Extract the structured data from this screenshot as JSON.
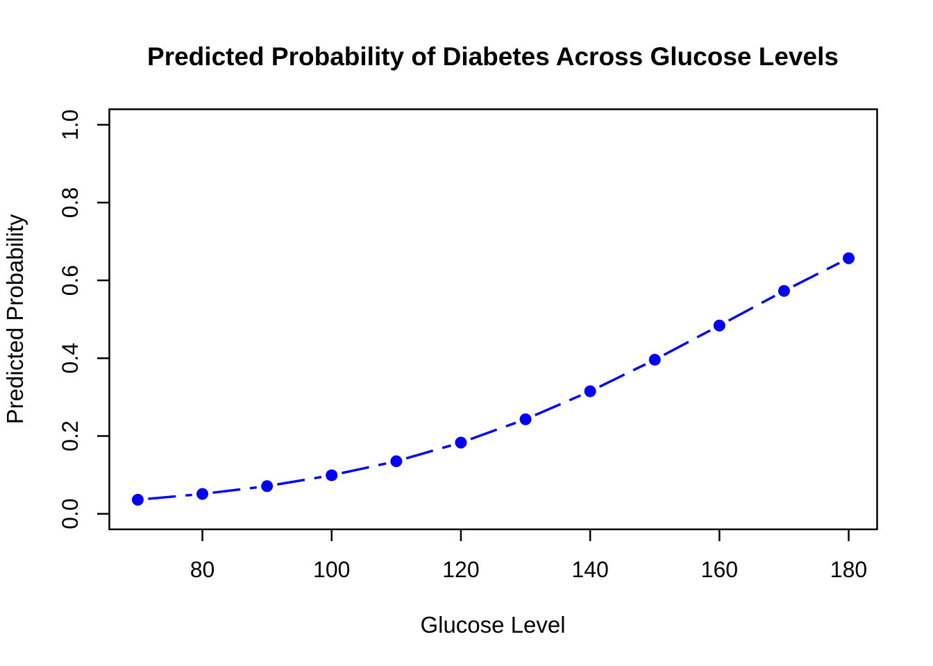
{
  "chart_data": {
    "type": "line",
    "title": "Predicted Probability of Diabetes Across Glucose Levels",
    "xlabel": "Glucose Level",
    "ylabel": "Predicted Probability",
    "series": [
      {
        "name": "predicted-probability",
        "x": [
          70,
          80,
          90,
          100,
          110,
          120,
          130,
          140,
          150,
          160,
          170,
          180
        ],
        "y": [
          0.036,
          0.051,
          0.071,
          0.099,
          0.135,
          0.183,
          0.243,
          0.315,
          0.396,
          0.484,
          0.573,
          0.657
        ]
      }
    ],
    "x_ticks": [
      80,
      100,
      120,
      140,
      160,
      180
    ],
    "x_tick_labels": [
      "80",
      "100",
      "120",
      "140",
      "160",
      "180"
    ],
    "y_ticks": [
      0.0,
      0.2,
      0.4,
      0.6,
      0.8,
      1.0
    ],
    "y_tick_labels": [
      "0.0",
      "0.2",
      "0.4",
      "0.6",
      "0.8",
      "1.0"
    ],
    "xlim": [
      65.6,
      184.4
    ],
    "ylim": [
      -0.04,
      1.04
    ],
    "grid": false,
    "legend_position": "none",
    "line_style": "dashed",
    "marker": "filled-circle",
    "colors": {
      "series": "#0000FF",
      "frame": "#000000",
      "text": "#000000",
      "background": "#FFFFFF"
    }
  }
}
